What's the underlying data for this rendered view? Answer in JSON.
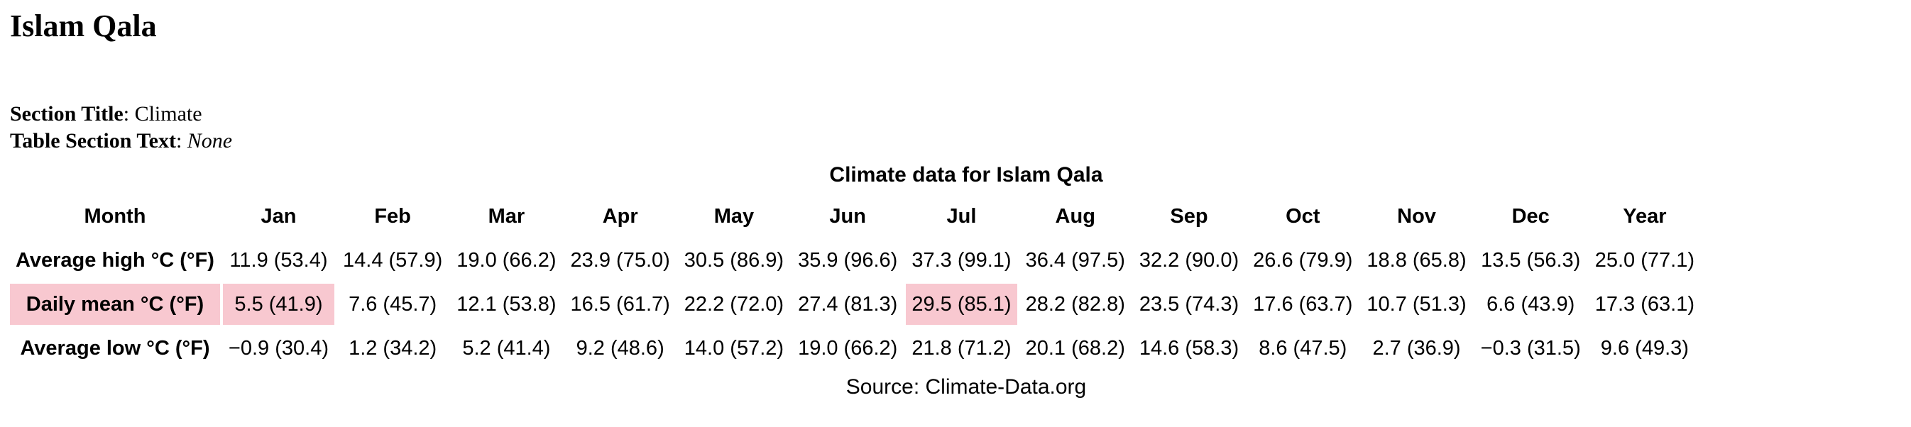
{
  "page": {
    "title": "Islam Qala",
    "section_title_label": "Section Title",
    "section_title_value": "Climate",
    "table_section_text_label": "Table Section Text",
    "table_section_text_value": "None"
  },
  "table": {
    "caption": "Climate data for Islam Qala",
    "header": [
      "Month",
      "Jan",
      "Feb",
      "Mar",
      "Apr",
      "May",
      "Jun",
      "Jul",
      "Aug",
      "Sep",
      "Oct",
      "Nov",
      "Dec",
      "Year"
    ],
    "rows": [
      {
        "label": "Average high °C (°F)",
        "label_highlight": false,
        "cells": [
          {
            "v": "11.9 (53.4)",
            "hl": false
          },
          {
            "v": "14.4 (57.9)",
            "hl": false
          },
          {
            "v": "19.0 (66.2)",
            "hl": false
          },
          {
            "v": "23.9 (75.0)",
            "hl": false
          },
          {
            "v": "30.5 (86.9)",
            "hl": false
          },
          {
            "v": "35.9 (96.6)",
            "hl": false
          },
          {
            "v": "37.3 (99.1)",
            "hl": false
          },
          {
            "v": "36.4 (97.5)",
            "hl": false
          },
          {
            "v": "32.2 (90.0)",
            "hl": false
          },
          {
            "v": "26.6 (79.9)",
            "hl": false
          },
          {
            "v": "18.8 (65.8)",
            "hl": false
          },
          {
            "v": "13.5 (56.3)",
            "hl": false
          },
          {
            "v": "25.0 (77.1)",
            "hl": false
          }
        ]
      },
      {
        "label": "Daily mean °C (°F)",
        "label_highlight": true,
        "cells": [
          {
            "v": "5.5 (41.9)",
            "hl": true
          },
          {
            "v": "7.6 (45.7)",
            "hl": false
          },
          {
            "v": "12.1 (53.8)",
            "hl": false
          },
          {
            "v": "16.5 (61.7)",
            "hl": false
          },
          {
            "v": "22.2 (72.0)",
            "hl": false
          },
          {
            "v": "27.4 (81.3)",
            "hl": false
          },
          {
            "v": "29.5 (85.1)",
            "hl": true
          },
          {
            "v": "28.2 (82.8)",
            "hl": false
          },
          {
            "v": "23.5 (74.3)",
            "hl": false
          },
          {
            "v": "17.6 (63.7)",
            "hl": false
          },
          {
            "v": "10.7 (51.3)",
            "hl": false
          },
          {
            "v": "6.6 (43.9)",
            "hl": false
          },
          {
            "v": "17.3 (63.1)",
            "hl": false
          }
        ]
      },
      {
        "label": "Average low °C (°F)",
        "label_highlight": false,
        "cells": [
          {
            "v": "−0.9 (30.4)",
            "hl": false
          },
          {
            "v": "1.2 (34.2)",
            "hl": false
          },
          {
            "v": "5.2 (41.4)",
            "hl": false
          },
          {
            "v": "9.2 (48.6)",
            "hl": false
          },
          {
            "v": "14.0 (57.2)",
            "hl": false
          },
          {
            "v": "19.0 (66.2)",
            "hl": false
          },
          {
            "v": "21.8 (71.2)",
            "hl": false
          },
          {
            "v": "20.1 (68.2)",
            "hl": false
          },
          {
            "v": "14.6 (58.3)",
            "hl": false
          },
          {
            "v": "8.6 (47.5)",
            "hl": false
          },
          {
            "v": "2.7 (36.9)",
            "hl": false
          },
          {
            "v": "−0.3 (31.5)",
            "hl": false
          },
          {
            "v": "9.6 (49.3)",
            "hl": false
          }
        ]
      }
    ],
    "source": "Source: Climate-Data.org"
  },
  "colors": {
    "highlight": "#f8c8d0"
  }
}
